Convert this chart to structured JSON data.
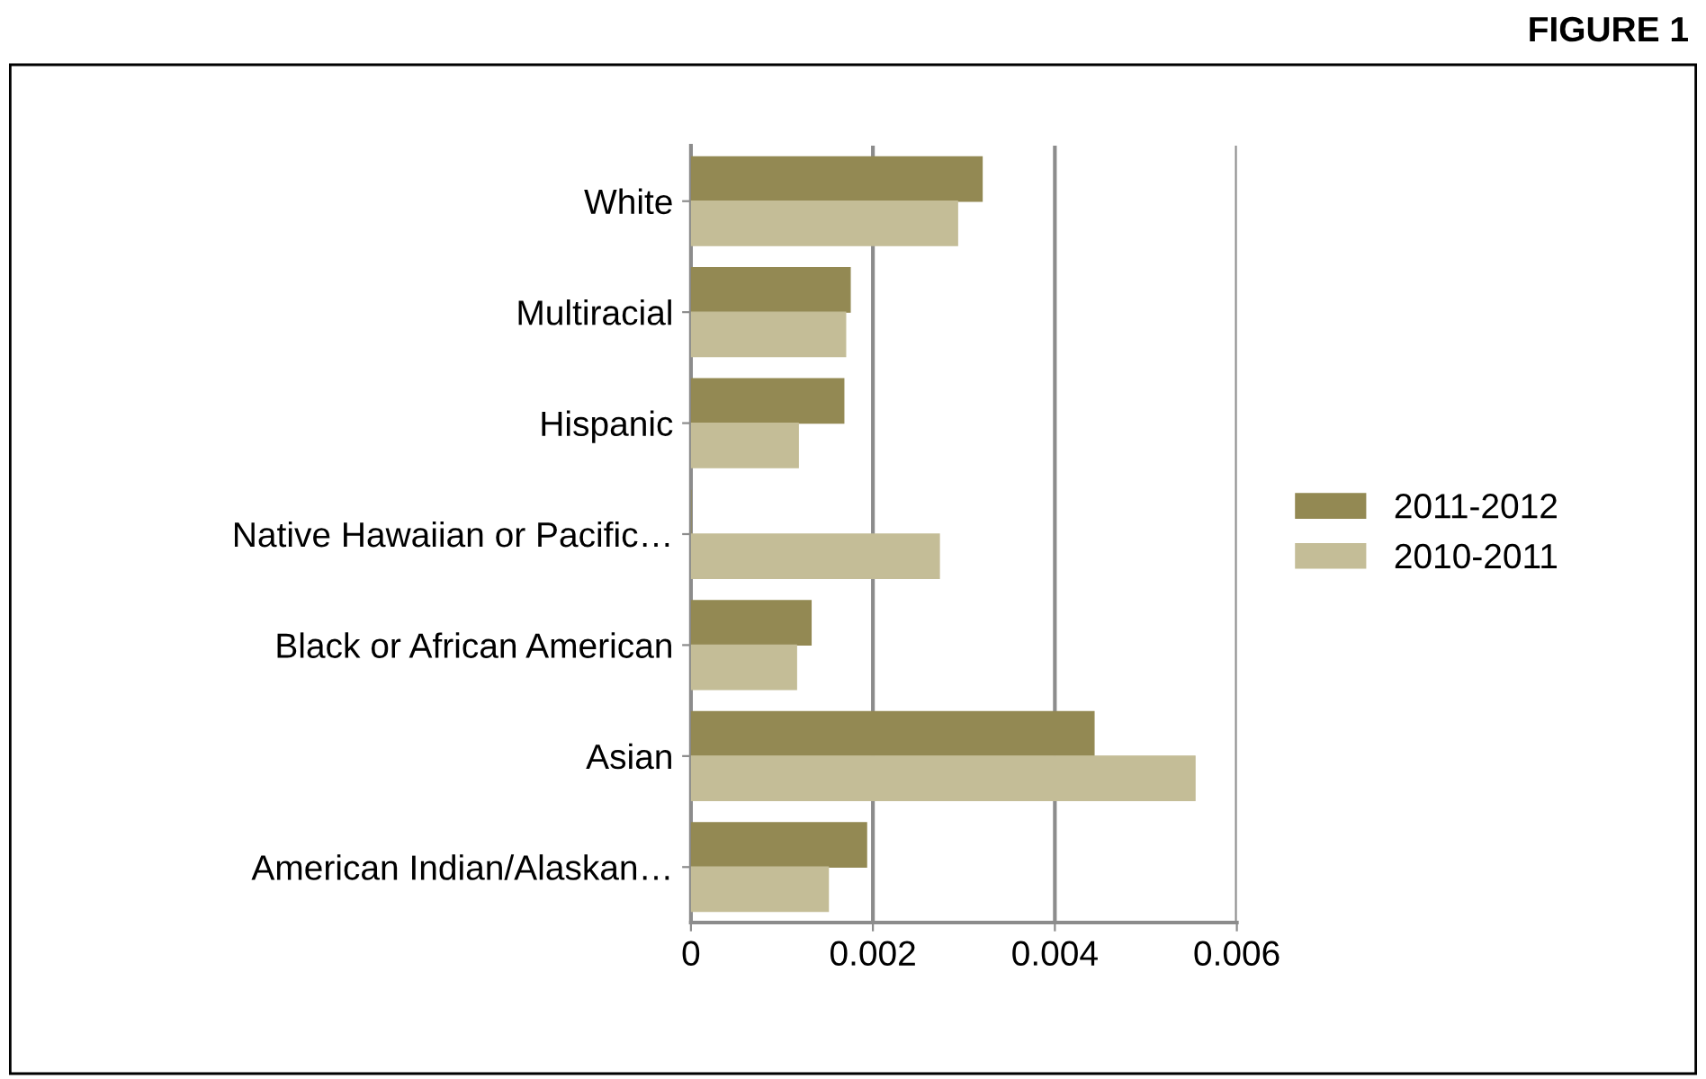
{
  "chart_data": {
    "type": "bar",
    "orientation": "horizontal",
    "title": "FIGURE 1",
    "categories": [
      "White",
      "Multiracial",
      "Hispanic",
      "Native Hawaiian or Pacific…",
      "Black or African American",
      "Asian",
      "American Indian/Alaskan…"
    ],
    "series": [
      {
        "name": "2011-2012",
        "color": "#938953",
        "values": [
          0.0032,
          0.00175,
          0.00168,
          0,
          0.00132,
          0.00443,
          0.00193
        ]
      },
      {
        "name": "2010-2011",
        "color": "#c4bd97",
        "values": [
          0.00293,
          0.0017,
          0.00118,
          0.00273,
          0.00116,
          0.00554,
          0.00151
        ]
      }
    ],
    "xlim": [
      0,
      0.006
    ],
    "xticks": [
      0,
      0.002,
      0.004,
      0.006
    ],
    "grid": "x",
    "legend": "right"
  }
}
